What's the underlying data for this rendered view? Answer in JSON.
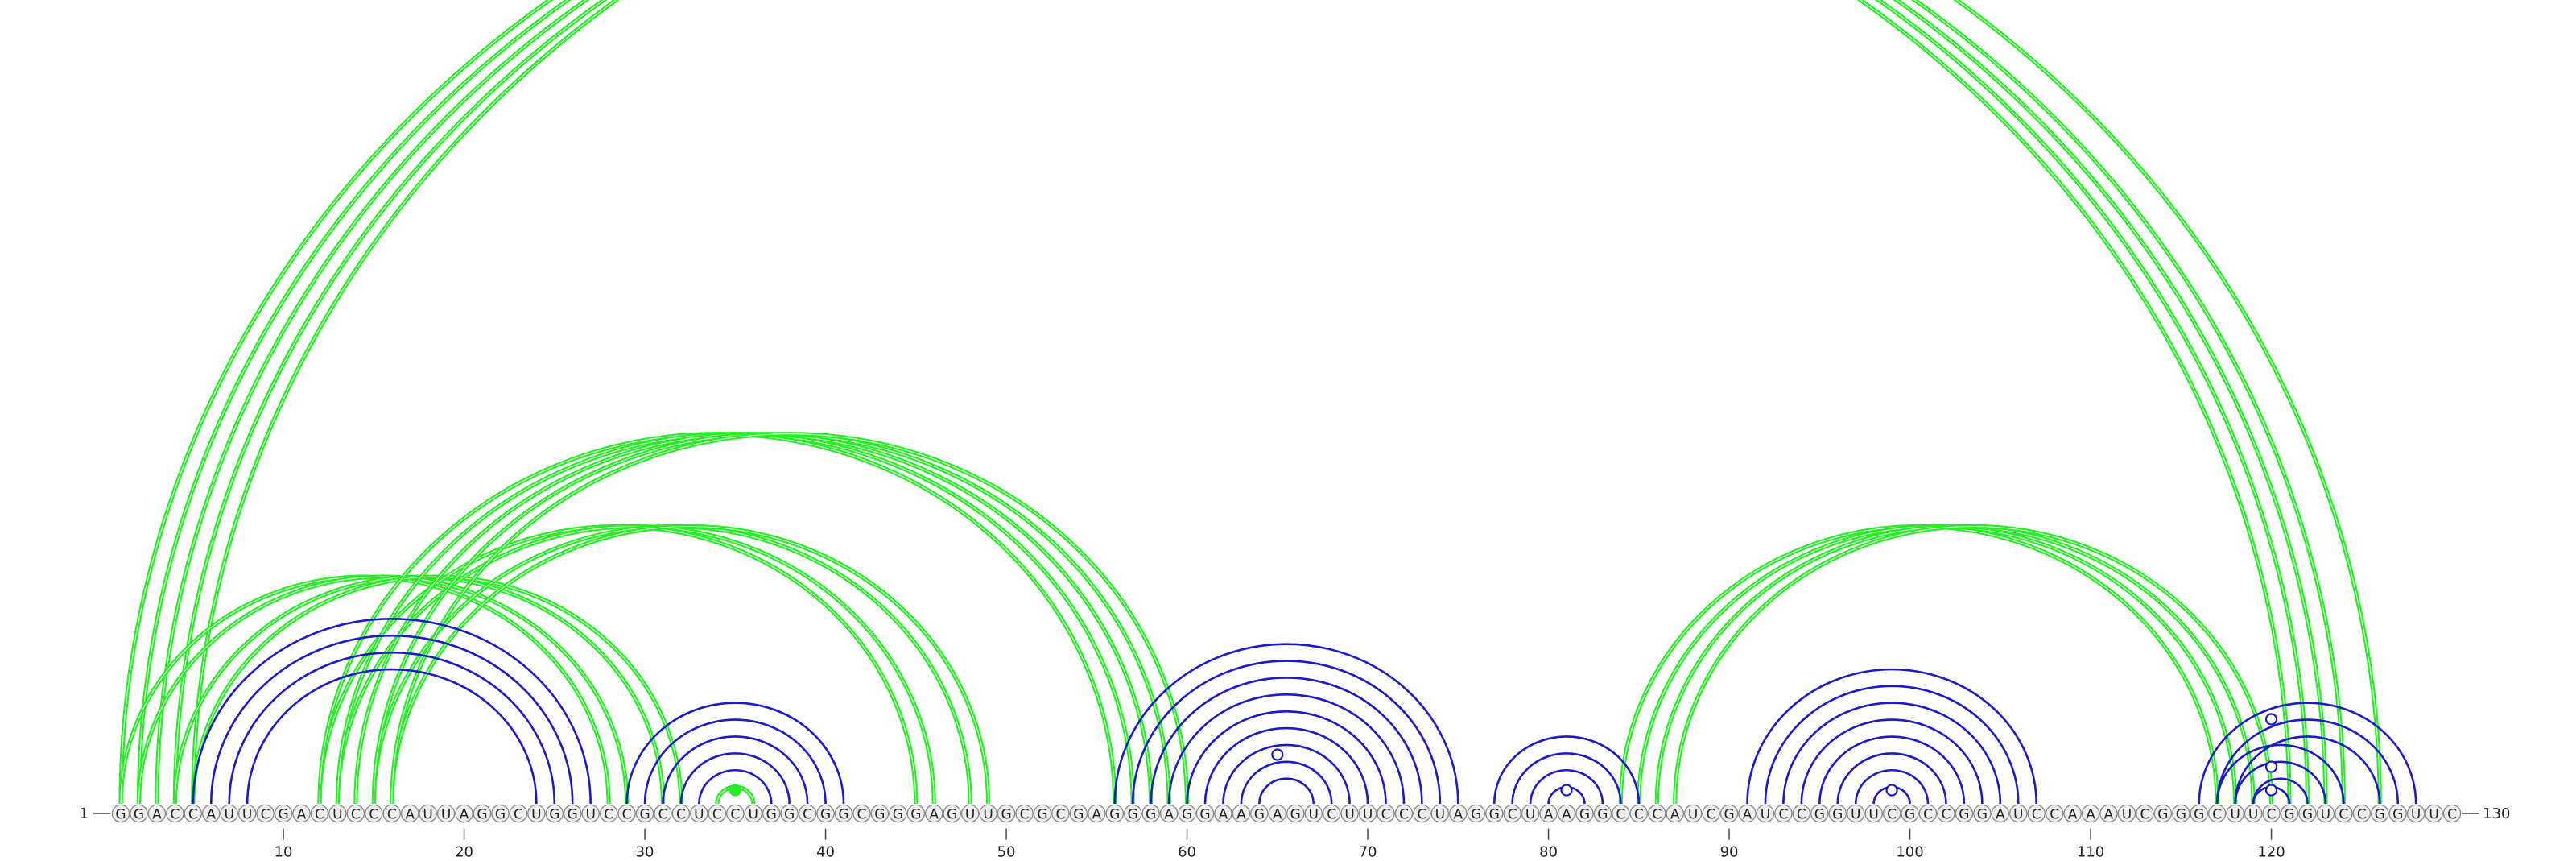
{
  "sequence": "GGACCAUUCGACUCCCAUUAGGCUGGUCCGCCUCCUGGCGGCGGGAGUUGCGCGAGGGAGGAAGAGUCUUCCCUAGGCUAAGGCCCAUCGAUCCGGUUCGCCGGAUCCAAAUCGGGCUUCGGUCCGGUUC",
  "start_label": "1",
  "end_label": "130",
  "ticks": [
    {
      "pos": 10,
      "label": "10"
    },
    {
      "pos": 20,
      "label": "20"
    },
    {
      "pos": 30,
      "label": "30"
    },
    {
      "pos": 40,
      "label": "40"
    },
    {
      "pos": 50,
      "label": "50"
    },
    {
      "pos": 60,
      "label": "60"
    },
    {
      "pos": 70,
      "label": "70"
    },
    {
      "pos": 80,
      "label": "80"
    },
    {
      "pos": 90,
      "label": "90"
    },
    {
      "pos": 100,
      "label": "100"
    },
    {
      "pos": 110,
      "label": "110"
    },
    {
      "pos": 120,
      "label": "120"
    }
  ],
  "colors": {
    "green": "#22ee22",
    "blue": "#1a1acc",
    "nucleotide_fill": "#eeeeee",
    "nucleotide_stroke": "#888888",
    "text": "#222222"
  },
  "arc_groups": [
    {
      "kind": "green",
      "pairs": [
        [
          1,
          121
        ],
        [
          2,
          122
        ],
        [
          3,
          123
        ],
        [
          4,
          124
        ],
        [
          5,
          126
        ]
      ]
    },
    {
      "kind": "green",
      "pairs": [
        [
          1,
          28
        ],
        [
          2,
          29
        ],
        [
          4,
          31
        ],
        [
          5,
          32
        ]
      ]
    },
    {
      "kind": "green",
      "pairs": [
        [
          12,
          45
        ],
        [
          13,
          46
        ],
        [
          15,
          48
        ],
        [
          16,
          49
        ]
      ]
    },
    {
      "kind": "green",
      "pairs": [
        [
          12,
          56
        ],
        [
          13,
          57
        ],
        [
          14,
          58
        ],
        [
          15,
          59
        ],
        [
          16,
          60
        ]
      ]
    },
    {
      "kind": "green",
      "pairs": [
        [
          84,
          117
        ],
        [
          85,
          118
        ],
        [
          86,
          119
        ],
        [
          87,
          120
        ]
      ]
    },
    {
      "kind": "blue",
      "pairs": [
        [
          5,
          27
        ],
        [
          6,
          26
        ],
        [
          7,
          25
        ],
        [
          8,
          24
        ]
      ]
    },
    {
      "kind": "blue",
      "pairs": [
        [
          29,
          41
        ],
        [
          30,
          40
        ],
        [
          31,
          39
        ],
        [
          32,
          38
        ],
        [
          33,
          37
        ]
      ]
    },
    {
      "kind": "green",
      "pairs": [
        [
          34,
          36
        ]
      ]
    },
    {
      "kind": "blue",
      "pairs": [
        [
          56,
          75
        ],
        [
          57,
          74
        ],
        [
          58,
          73
        ],
        [
          59,
          72
        ],
        [
          60,
          71
        ],
        [
          61,
          70
        ],
        [
          62,
          69
        ],
        [
          63,
          68
        ],
        [
          64,
          67
        ]
      ]
    },
    {
      "kind": "blue",
      "pairs": [
        [
          77,
          85
        ],
        [
          78,
          84
        ],
        [
          79,
          83
        ],
        [
          80,
          82
        ]
      ]
    },
    {
      "kind": "blue",
      "pairs": [
        [
          91,
          107
        ],
        [
          92,
          106
        ],
        [
          93,
          105
        ],
        [
          94,
          104
        ],
        [
          95,
          103
        ],
        [
          96,
          102
        ],
        [
          97,
          101
        ],
        [
          98,
          100
        ]
      ]
    },
    {
      "kind": "blue",
      "pairs": [
        [
          116,
          128
        ],
        [
          117,
          127
        ],
        [
          118,
          126
        ],
        [
          119,
          121
        ]
      ]
    },
    {
      "kind": "blue",
      "pairs": [
        [
          117,
          124
        ],
        [
          118,
          123
        ],
        [
          119,
          122
        ]
      ]
    }
  ],
  "pair_markers": [
    {
      "pos": 35,
      "kind": "green",
      "filled": true
    },
    {
      "pos": 65,
      "kind": "blue",
      "filled": false
    },
    {
      "pos": 81,
      "kind": "blue",
      "filled": false
    },
    {
      "pos": 99,
      "kind": "blue",
      "filled": false
    },
    {
      "pos": 120,
      "kind": "blue",
      "filled": false
    },
    {
      "pos": 120,
      "kind": "blue",
      "filled": false
    },
    {
      "pos": 120,
      "kind": "blue",
      "filled": false
    }
  ]
}
